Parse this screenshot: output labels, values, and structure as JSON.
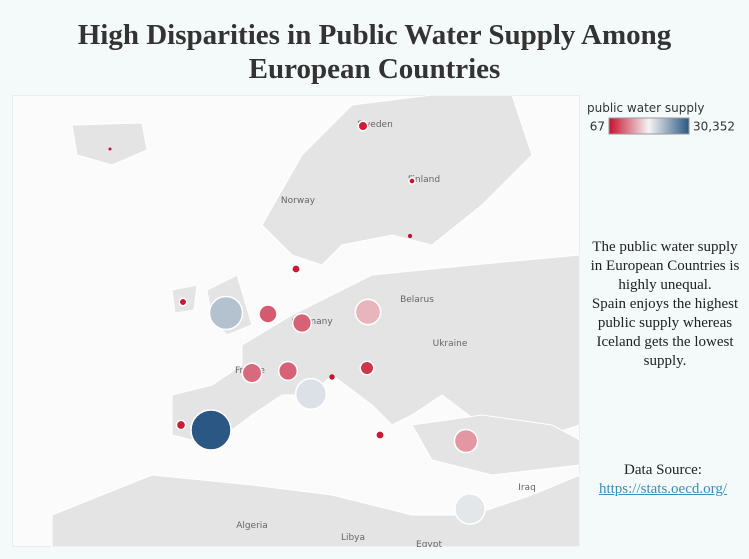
{
  "title": "High Disparities in Public Water Supply Among European Countries",
  "legend": {
    "title": "public water supply",
    "min": 67,
    "max": {
      "value": 30352,
      "label": "30,352"
    },
    "colors": [
      "#c8102e",
      "#f4f4f4",
      "#2a5783"
    ]
  },
  "map_labels": [
    "Sweden",
    "Finland",
    "Norway",
    "Belarus",
    "Germany",
    "France",
    "Ukraine",
    "Algeria",
    "Libya",
    "Iraq",
    "Egypt"
  ],
  "bubbles": {
    "values": [
      67,
      1000,
      300,
      100,
      700,
      500,
      20000,
      5000,
      5500,
      11000,
      6000,
      5500,
      200,
      2500,
      17000,
      900,
      30352,
      700,
      9000,
      16500
    ]
  },
  "description": [
    "The public water supply in European Countries is highly unequal.",
    "Spain enjoys the highest public supply whereas Iceland gets the lowest supply."
  ],
  "source": {
    "label": "Data Source:",
    "link": "https://stats.oecd.org/"
  }
}
